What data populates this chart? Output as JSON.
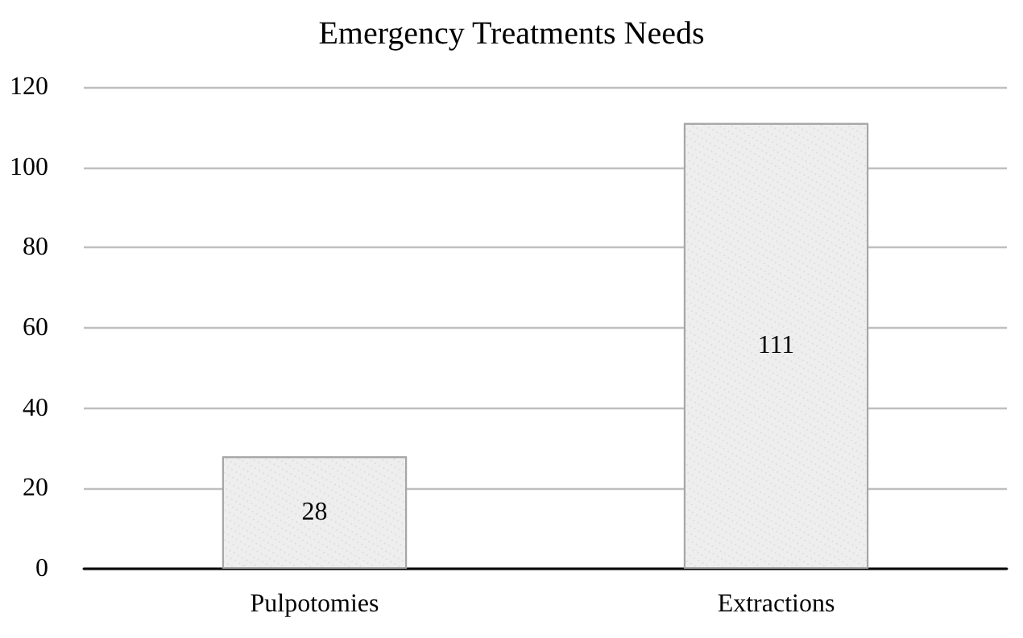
{
  "chart_data": {
    "type": "bar",
    "title": "Emergency Treatments Needs",
    "categories": [
      "Pulpotomies",
      "Extractions"
    ],
    "values": [
      28,
      111
    ],
    "color": "#eeeeee",
    "ylim": [
      0,
      120
    ],
    "yticks": [
      0,
      20,
      40,
      60,
      80,
      100,
      120
    ],
    "grid": "y",
    "data_labels": true
  }
}
